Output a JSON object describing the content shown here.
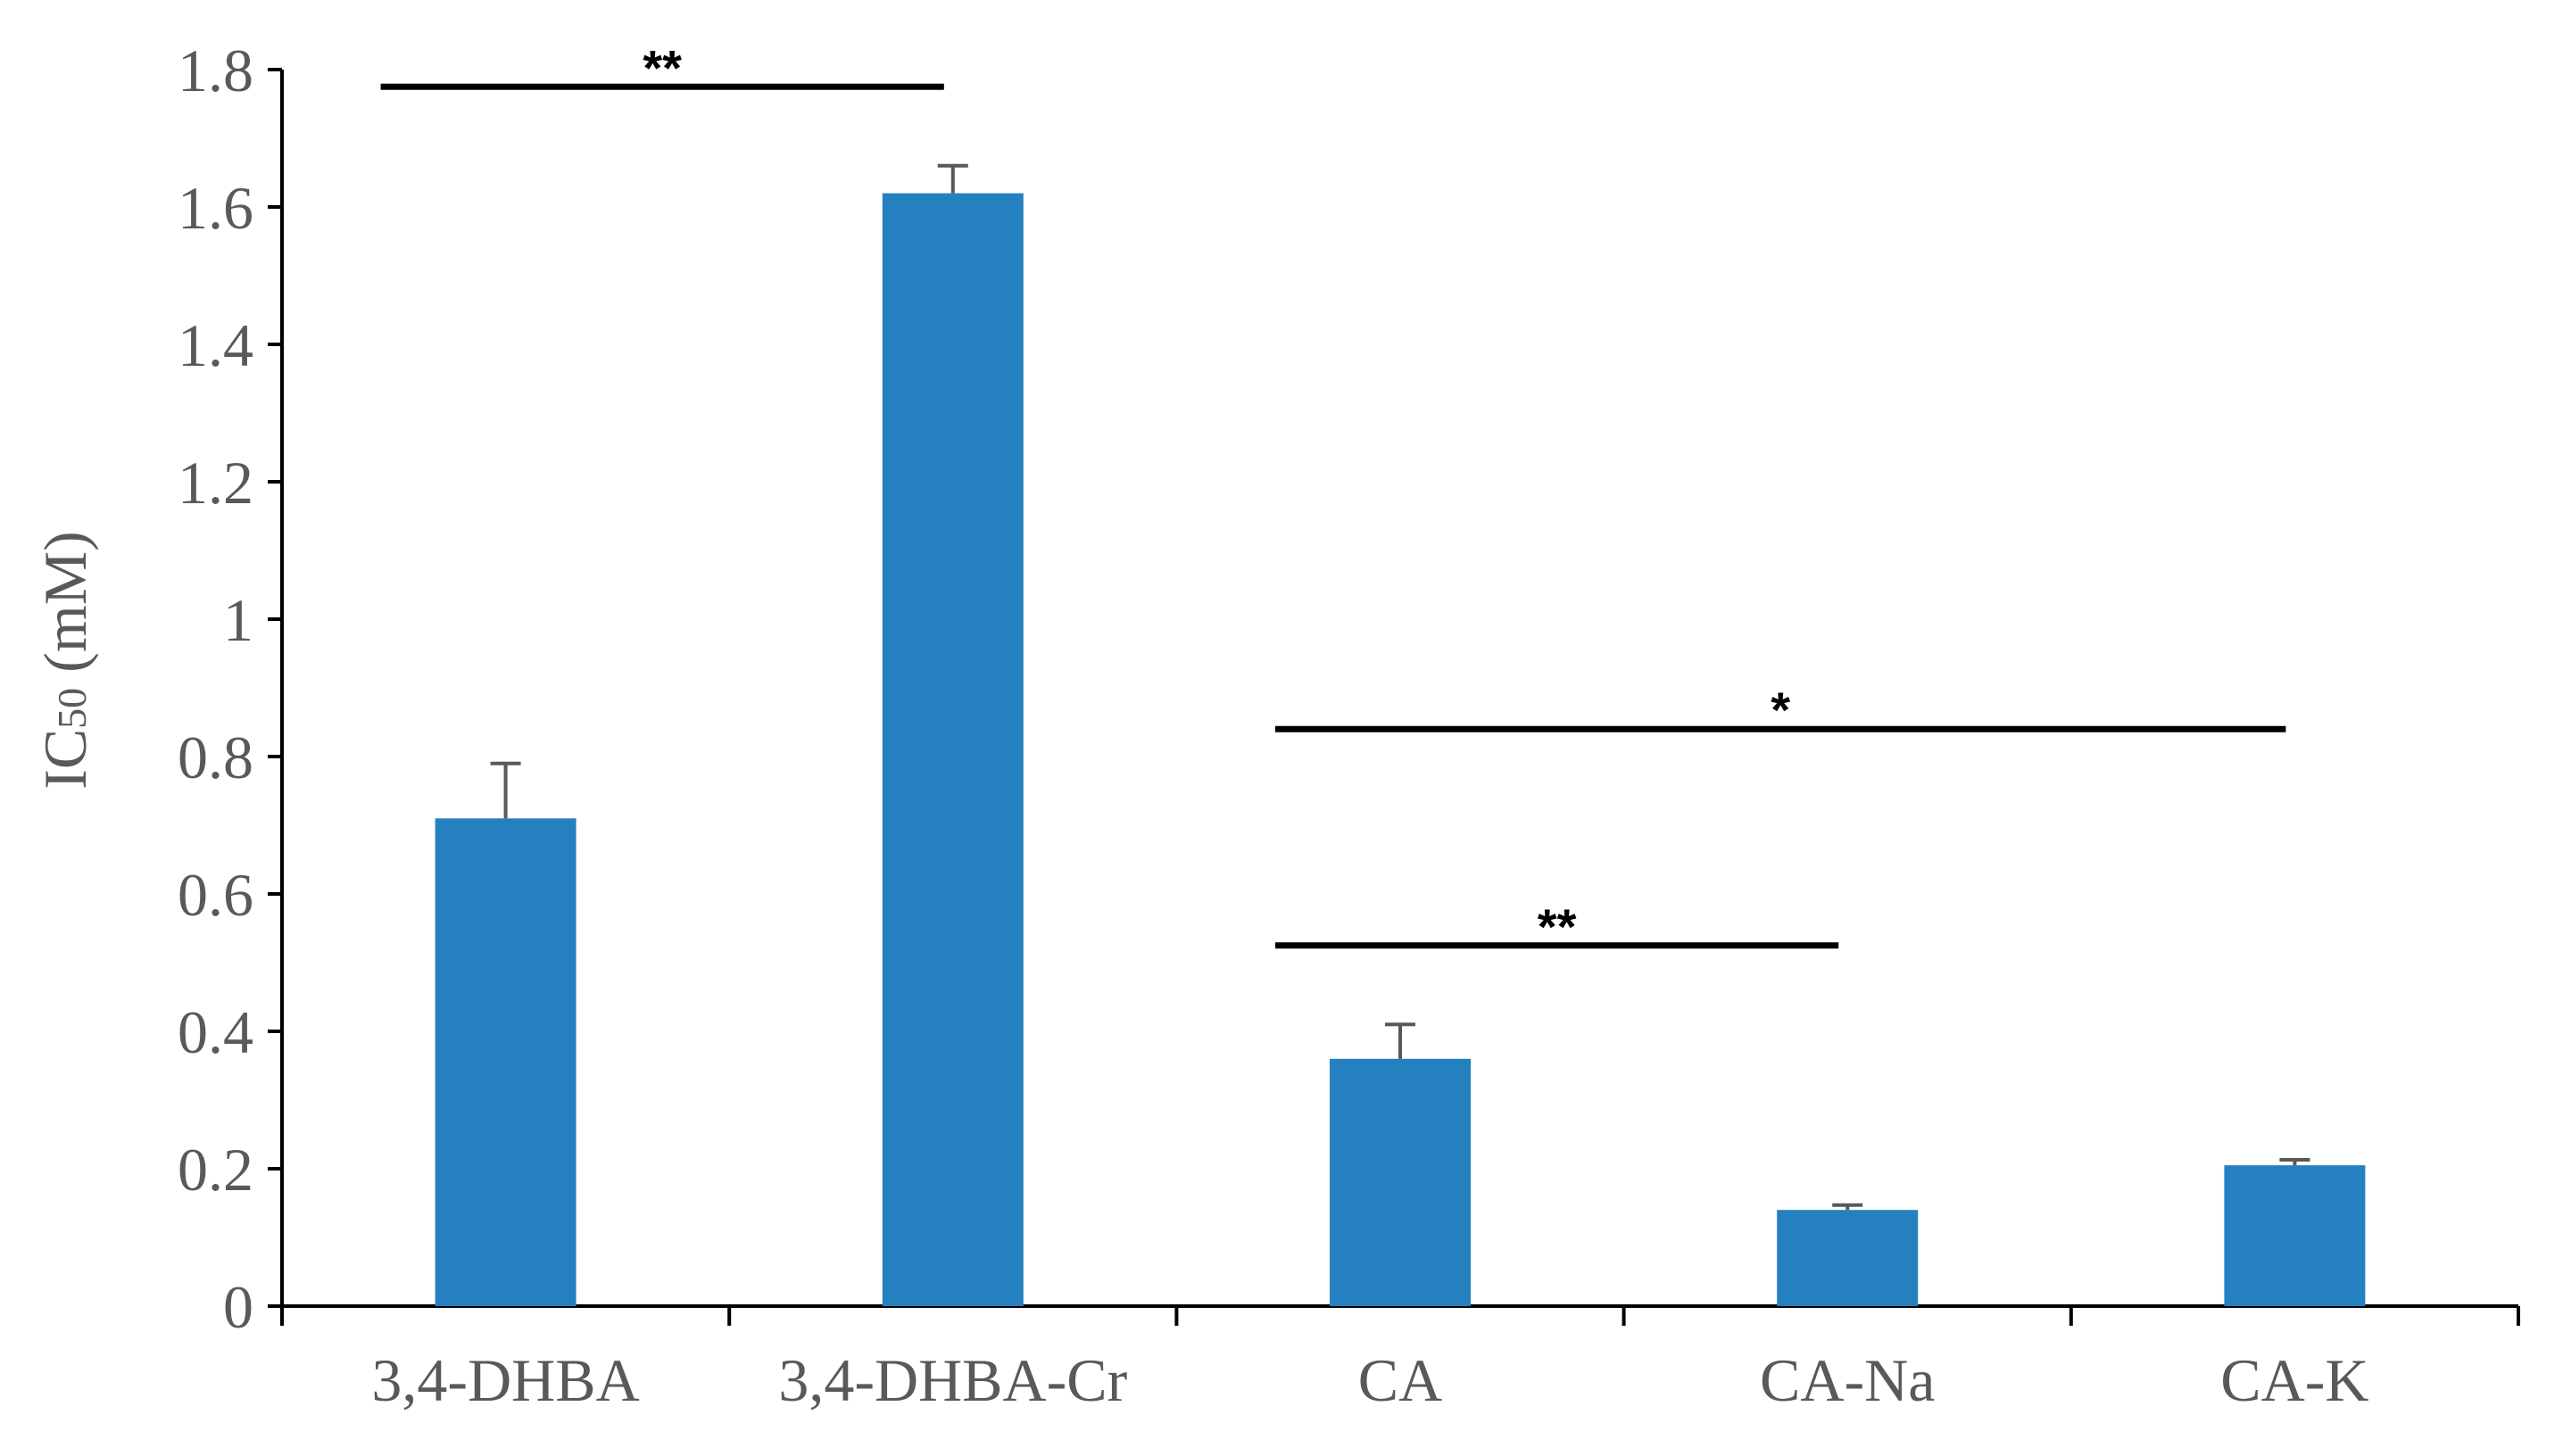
{
  "chart_data": {
    "type": "bar",
    "categories": [
      "3,4-DHBA",
      "3,4-DHBA-Cr",
      "CA",
      "CA-Na",
      "CA-K"
    ],
    "values": [
      0.71,
      1.62,
      0.36,
      0.14,
      0.205
    ],
    "errors": [
      0.08,
      0.04,
      0.05,
      0.007,
      0.008
    ],
    "ylabel": {
      "main": "IC",
      "sub": "50",
      "unit": " (mM)"
    },
    "ylim": [
      0,
      1.8
    ],
    "yticks": [
      "0",
      "0.2",
      "0.4",
      "0.6",
      "0.8",
      "1",
      "1.2",
      "1.4",
      "1.6",
      "1.8"
    ],
    "ytick_values": [
      0,
      0.2,
      0.4,
      0.6,
      0.8,
      1.0,
      1.2,
      1.4,
      1.6,
      1.8
    ],
    "grid": false,
    "bar_color": "#2580C0",
    "error_color": "#595959",
    "significance": [
      {
        "from": 0,
        "to": 1,
        "label": "**",
        "y": 1.775
      },
      {
        "from": 2,
        "to": 4,
        "label": "*",
        "y": 0.84
      },
      {
        "from": 2,
        "to": 3,
        "label": "**",
        "y": 0.525
      }
    ]
  }
}
